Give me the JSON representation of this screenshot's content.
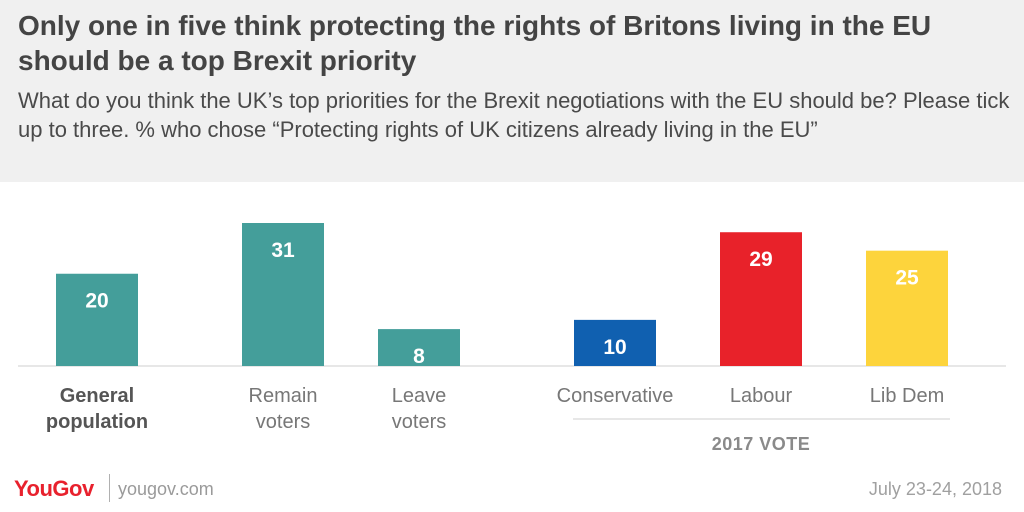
{
  "header": {
    "title": "Only one in five think protecting the rights of Britons living in the EU should be a top Brexit priority",
    "subtitle": "What do you think the UK’s top priorities for the Brexit negotiations with the EU should be? Please tick up to three. % who chose “Protecting rights of UK citizens already living in the EU”"
  },
  "chart_data": {
    "type": "bar",
    "title": "",
    "xlabel": "",
    "ylabel": "",
    "ylim": [
      0,
      31
    ],
    "grid": false,
    "categories": [
      [
        "General",
        "population"
      ],
      [
        "Remain",
        "voters"
      ],
      [
        "Leave",
        "voters"
      ],
      [
        "Conservative"
      ],
      [
        "Labour"
      ],
      [
        "Lib Dem"
      ]
    ],
    "values": [
      20,
      31,
      8,
      10,
      29,
      25
    ],
    "colors": [
      "#449e9a",
      "#449e9a",
      "#449e9a",
      "#1060b0",
      "#e8222a",
      "#fdd43c"
    ],
    "value_label_colors": [
      "#ffffff",
      "#ffffff",
      "#ffffff",
      "#ffffff",
      "#ffffff",
      "#ffffff"
    ],
    "bold_category_index": 0,
    "group_label": "2017 VOTE"
  },
  "footer": {
    "logo": "YouGov",
    "site": "yougov.com",
    "date": "July 23-24, 2018"
  }
}
